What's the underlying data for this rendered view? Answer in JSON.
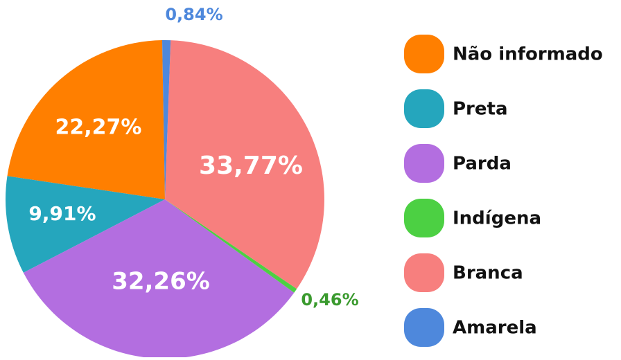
{
  "chart_data": {
    "type": "pie",
    "categories": [
      "Não informado",
      "Preta",
      "Parda",
      "Indígena",
      "Branca",
      "Amarela"
    ],
    "values": [
      22.27,
      9.91,
      32.26,
      0.46,
      33.77,
      0.84
    ],
    "value_labels": [
      "22,27%",
      "9,91%",
      "32,26%",
      "0,46%",
      "33,77%",
      "0,84%"
    ],
    "colors": [
      "#ff7f00",
      "#25a6bd",
      "#b36ee0",
      "#4cd043",
      "#f77f7e",
      "#4e88dc"
    ],
    "legend": "right"
  }
}
